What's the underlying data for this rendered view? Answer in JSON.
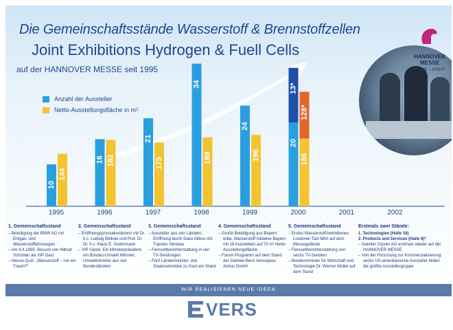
{
  "header": {
    "title_de": "Die Gemeinschaftsstände Wasserstoff & Brennstoffzellen",
    "title_en": "Joint Exhibitions Hydrogen & Fuell Cells",
    "subtitle": "auf der HANNOVER MESSE seit 1995"
  },
  "logo": {
    "name": "HANNOVER MESSE",
    "years": "1995 – 2000 ff"
  },
  "legend": {
    "exhibitors": "Anzahl der Aussteller",
    "area": "Netto-Ausstellungsfläche in m",
    "area_sup": "2"
  },
  "colors": {
    "exhibitors": "#2a9fdf",
    "area": "#f3c430",
    "exhibitors_extra": "#1e50a8",
    "area_extra": "#e2662a",
    "text": "#1d4590"
  },
  "chart_data": {
    "type": "bar",
    "categories": [
      "1995",
      "1996",
      "1997",
      "1998",
      "1999",
      "2000",
      "2001",
      "2002"
    ],
    "series": [
      {
        "name": "Anzahl der Aussteller",
        "values": [
          10,
          16,
          21,
          34,
          24,
          20,
          null,
          null
        ],
        "labels": [
          "10",
          "16",
          "21",
          "34",
          "24",
          "20",
          "",
          ""
        ]
      },
      {
        "name": "Netto-Ausstellungsfläche in m2",
        "values": [
          144,
          182,
          175,
          189,
          196,
          186,
          null,
          null
        ],
        "labels": [
          "144",
          "182",
          "175",
          "189",
          "196",
          "186",
          "",
          ""
        ]
      }
    ],
    "stacked_extra": [
      {
        "category": "2000",
        "series": "Anzahl der Aussteller",
        "value": 13,
        "label": "13*"
      },
      {
        "category": "2000",
        "series": "Netto-Ausstellungsfläche in m2",
        "value": 128,
        "label": "128*"
      }
    ]
  },
  "columns": [
    {
      "head": "1. Gemeinschaftsstand",
      "items": [
        "– Beteiligung der BMW AG mit Erdgas- und Wasserstofffahrzeugen",
        "– Am 6.4.1995: Besuch von Hiltrud Schröder als VIP Gast",
        "– Messe-Quiz: „Wasserstoff – nur ein Traum?“"
      ]
    },
    {
      "head": "2. Gemeinschaftsstand",
      "items": [
        "– Eröffnungspressekonferenz mit Dr. h.c. Ludwig Bölkow und Prof. Dr. Dr. h.c. Klaus E. Goehrmann",
        "– VIP Gäste: Ein Ministerpräsident, ein Bundes-Umwelt Minister, Umweltminister aus vier Bundesländern"
      ]
    },
    {
      "head": "3. Gemeinschaftsstand",
      "items": [
        "– Aussteller aus vier Ländern, Eröffnung durch Daso Airbus mit Tupolev, Moskau",
        "– Fernsehberichterstattung in vier TV-Sendungen",
        "– Fünf Länderminister, drei Staatssekretäre zu Gast am Stand"
      ]
    },
    {
      "head": "4. Gemeinschaftsstand",
      "items": [
        "– Große Beteiligung aus Bayern: wiba, Wasserstoff Initiative Bayern mit 16 Ausstellern auf 70 m² Netto-Ausstellungsfläche",
        "– Forum Programm auf dem Stand der Daimler-Benz Aerospace Airbus GmbH"
      ]
    },
    {
      "head": "5. Gemeinschaftsstand",
      "items": [
        "– Erstes Wasserstoff-betriebenes Londoner Taxi fährt auf dem Messegelände",
        "– Fernsehberichterstattung von sechs TV-Sendern",
        "– Bundesminister für Wirtschaft und Technologie Dr. Werner Müller auf dem Stand"
      ]
    },
    {
      "head": "Erstmals zwei Stände:",
      "items": [
        "1. Technologien (Halle 18)",
        "2. Products and Services (Halle 8)*",
        "– Daimler Crysler AG erstmals wieder auf der HANNOVER MESSE",
        "– Von der Forschung zur Kommerzialisierung: sechs US-amerikanische Aussteller bilden die größte Ausstellergruppe"
      ]
    }
  ],
  "footer": {
    "slogan": "WIR REALISIEREN NEUE IDEEN",
    "brand": "VERS"
  }
}
